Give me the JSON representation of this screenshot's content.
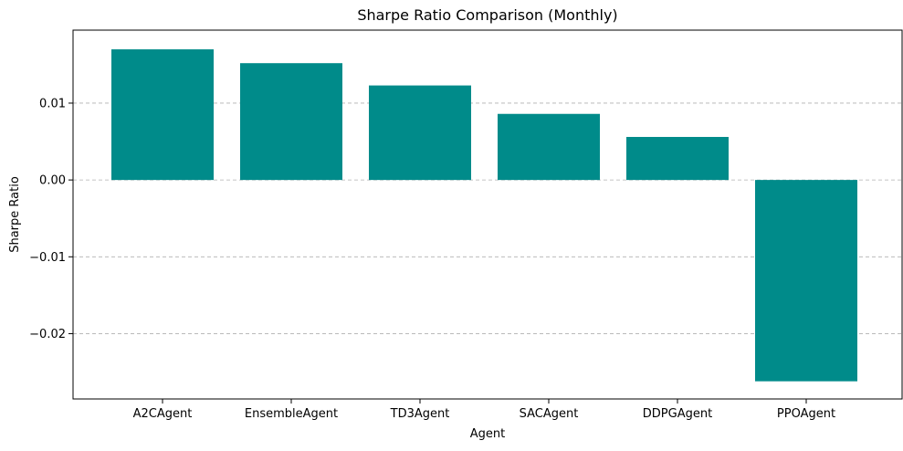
{
  "chart_data": {
    "type": "bar",
    "title": "Sharpe Ratio Comparison (Monthly)",
    "xlabel": "Agent",
    "ylabel": "Sharpe Ratio",
    "categories": [
      "A2CAgent",
      "EnsembleAgent",
      "TD3Agent",
      "SACAgent",
      "DDPGAgent",
      "PPOAgent"
    ],
    "values": [
      0.017,
      0.0152,
      0.0123,
      0.0086,
      0.0056,
      -0.0262
    ],
    "ylim": [
      -0.0285,
      0.0195
    ],
    "yticks": [
      0.01,
      0.0,
      -0.01,
      -0.02
    ],
    "ytick_labels": [
      "0.01",
      "0.00",
      "−0.01",
      "−0.02"
    ],
    "grid": "y-dashed",
    "legend": "none",
    "colors": {
      "bar": "#008b8a",
      "grid": "#b0b0b0",
      "axis": "#000000"
    }
  }
}
